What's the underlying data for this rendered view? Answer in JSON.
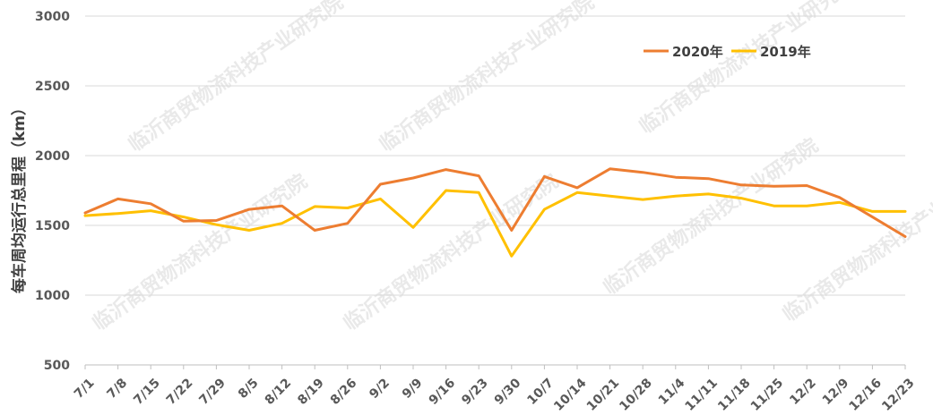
{
  "chart_data": {
    "type": "line",
    "title": "",
    "xlabel": "",
    "ylabel": "每车周均运行总里程（km）",
    "ylim": [
      500,
      3000
    ],
    "yticks": [
      500,
      1000,
      1500,
      2000,
      2500,
      3000
    ],
    "grid": true,
    "legend_position": "top-right",
    "categories": [
      "7/1",
      "7/8",
      "7/15",
      "7/22",
      "7/29",
      "8/5",
      "8/12",
      "8/19",
      "8/26",
      "9/2",
      "9/9",
      "9/16",
      "9/23",
      "9/30",
      "10/7",
      "10/14",
      "10/21",
      "10/28",
      "11/4",
      "11/11",
      "11/18",
      "11/25",
      "12/2",
      "12/9",
      "12/16",
      "12/23"
    ],
    "series": [
      {
        "name": "2020年",
        "color": "#ED7D31",
        "values": [
          1590,
          1690,
          1655,
          1530,
          1535,
          1615,
          1640,
          1465,
          1515,
          1795,
          1840,
          1900,
          1855,
          1465,
          1850,
          1770,
          1905,
          1880,
          1845,
          1835,
          1790,
          1780,
          1785,
          1700,
          1560,
          1420
        ]
      },
      {
        "name": "2019年",
        "color": "#FFC000",
        "values": [
          1570,
          1585,
          1605,
          1560,
          1505,
          1465,
          1515,
          1635,
          1625,
          1690,
          1485,
          1750,
          1735,
          1280,
          1615,
          1735,
          1710,
          1685,
          1710,
          1725,
          1695,
          1640,
          1640,
          1665,
          1600,
          1600
        ]
      }
    ]
  },
  "watermark": {
    "text": "临沂商贸物流科技产业研究院"
  }
}
